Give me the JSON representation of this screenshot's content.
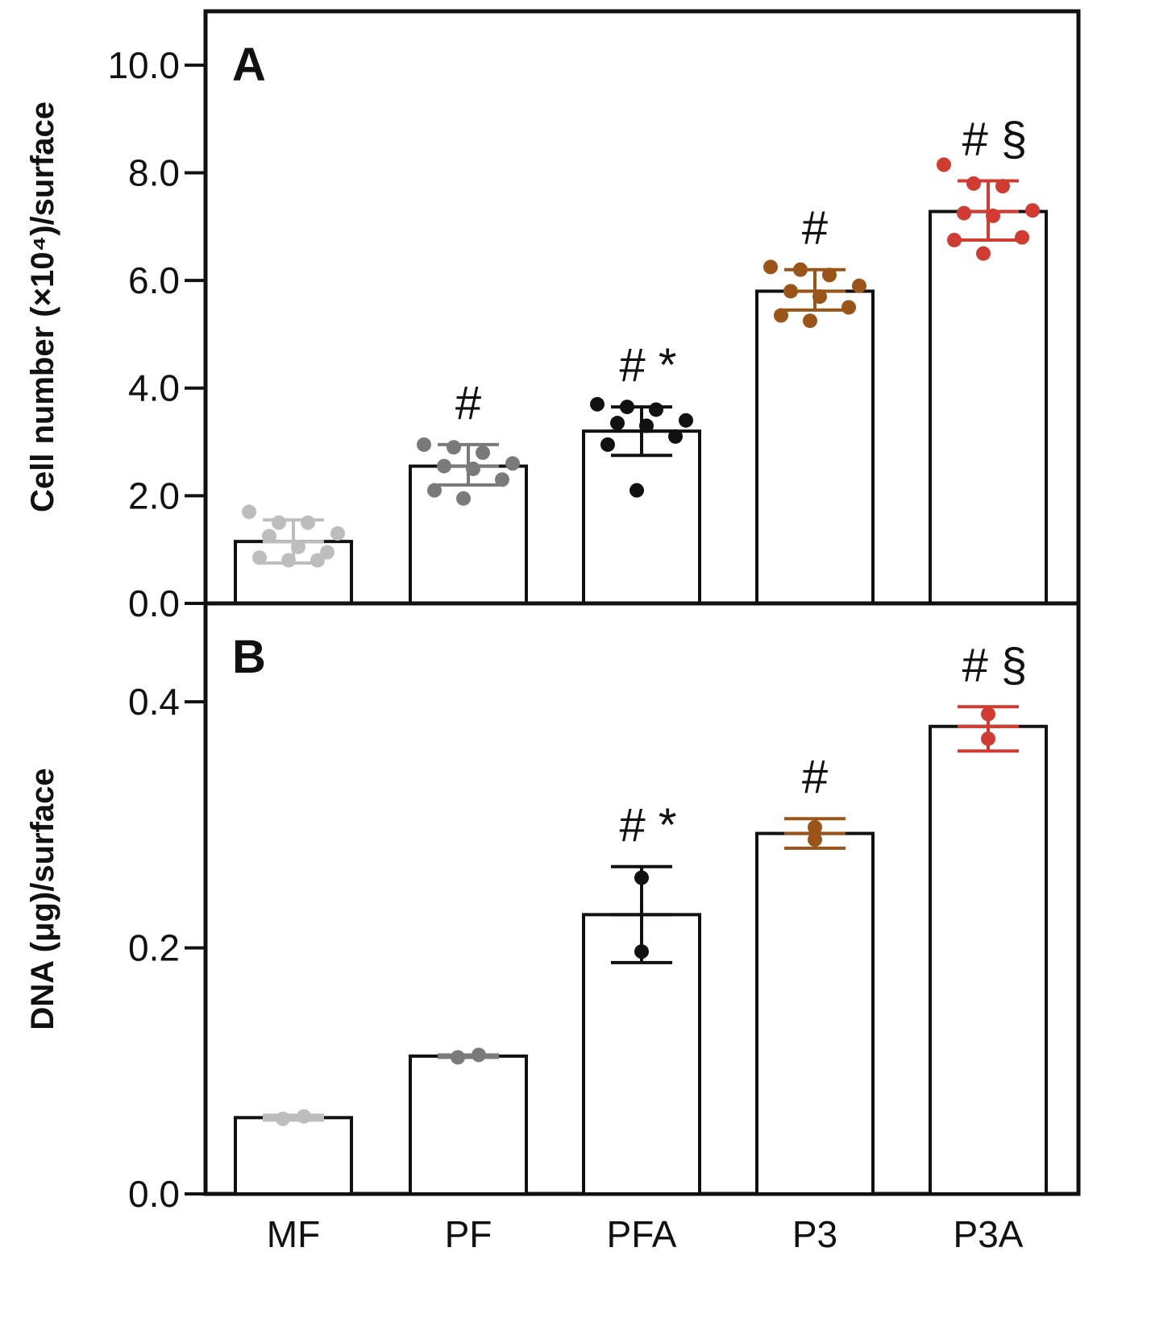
{
  "chart_data": [
    {
      "type": "bar",
      "panel": "A",
      "ylabel": "Cell number (×10⁴)/surface",
      "ylim": [
        0,
        11
      ],
      "yticks": [
        0,
        2,
        4,
        6,
        8,
        10
      ],
      "ytick_labels": [
        "0.0",
        "2.0",
        "4.0",
        "6.0",
        "8.0",
        "10.0"
      ],
      "categories": [
        "MF",
        "PF",
        "PFA",
        "P3",
        "P3A"
      ],
      "values": [
        1.15,
        2.55,
        3.2,
        5.8,
        7.28
      ],
      "error_low": [
        0.75,
        2.2,
        2.75,
        5.45,
        6.75
      ],
      "error_high": [
        1.55,
        2.95,
        3.65,
        6.2,
        7.85
      ],
      "points": [
        [
          1.7,
          1.5,
          1.5,
          1.3,
          1.25,
          1.05,
          0.95,
          0.85,
          0.8,
          0.8
        ],
        [
          2.95,
          2.9,
          2.8,
          2.6,
          2.55,
          2.5,
          2.3,
          2.1,
          1.95
        ],
        [
          3.7,
          3.65,
          3.6,
          3.4,
          3.35,
          3.3,
          3.1,
          2.95,
          2.1
        ],
        [
          6.25,
          6.2,
          6.1,
          5.9,
          5.8,
          5.7,
          5.5,
          5.35,
          5.25
        ],
        [
          8.15,
          7.8,
          7.75,
          7.3,
          7.25,
          7.2,
          6.8,
          6.75,
          6.5
        ]
      ],
      "annotations": [
        "",
        "#",
        "# *",
        "#",
        "# §"
      ],
      "colors": [
        "#bdbdbd",
        "#7a7a7a",
        "#111111",
        "#9a5417",
        "#d23b32"
      ]
    },
    {
      "type": "bar",
      "panel": "B",
      "ylabel": "DNA (μg)/surface",
      "ylim": [
        0,
        0.48
      ],
      "yticks": [
        0,
        0.2,
        0.4
      ],
      "ytick_labels": [
        "0.0",
        "0.2",
        "0.4"
      ],
      "categories": [
        "MF",
        "PF",
        "PFA",
        "P3",
        "P3A"
      ],
      "values": [
        0.062,
        0.112,
        0.227,
        0.293,
        0.38
      ],
      "error_low": [
        0.06,
        0.111,
        0.188,
        0.281,
        0.36
      ],
      "error_high": [
        0.064,
        0.113,
        0.266,
        0.305,
        0.396
      ],
      "points": [
        [
          0.061,
          0.063
        ],
        [
          0.111,
          0.113
        ],
        [
          0.197,
          0.257
        ],
        [
          0.288,
          0.298
        ],
        [
          0.37,
          0.39
        ]
      ],
      "annotations": [
        "",
        "",
        "# *",
        "#",
        "# §"
      ],
      "colors": [
        "#bdbdbd",
        "#7a7a7a",
        "#111111",
        "#9a5417",
        "#d23b32"
      ]
    }
  ]
}
